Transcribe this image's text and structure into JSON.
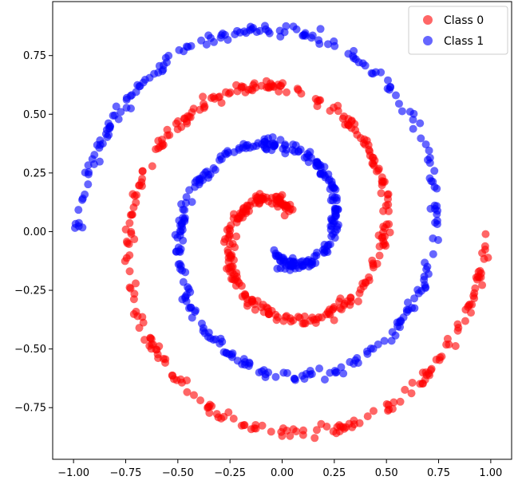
{
  "chart_data": {
    "type": "scatter",
    "title": "",
    "xlabel": "",
    "ylabel": "",
    "xlim": [
      -1.1,
      1.1
    ],
    "ylim": [
      -0.97,
      0.98
    ],
    "xticks": [
      -1.0,
      -0.75,
      -0.5,
      -0.25,
      0.0,
      0.25,
      0.5,
      0.75,
      1.0
    ],
    "xtick_labels": [
      "−1.00",
      "−0.75",
      "−0.50",
      "−0.25",
      "0.00",
      "0.25",
      "0.50",
      "0.75",
      "1.00"
    ],
    "yticks": [
      -0.75,
      -0.5,
      -0.25,
      0.0,
      0.25,
      0.5,
      0.75
    ],
    "ytick_labels": [
      "−0.75",
      "−0.50",
      "−0.25",
      "0.00",
      "0.25",
      "0.50",
      "0.75"
    ],
    "grid": false,
    "legend_position": "top-right",
    "series": [
      {
        "name": "Class 0",
        "color": "#ff0000",
        "alpha": 0.6,
        "spiral_phase": 0,
        "points_per_arm": 500
      },
      {
        "name": "Class 1",
        "color": "#0000ff",
        "alpha": 0.6,
        "spiral_phase": 3.14159,
        "points_per_arm": 500
      }
    ],
    "spiral": {
      "turns_radians_max": 12.5664,
      "radius_max": 0.98,
      "radius_min": 0.1
    }
  }
}
